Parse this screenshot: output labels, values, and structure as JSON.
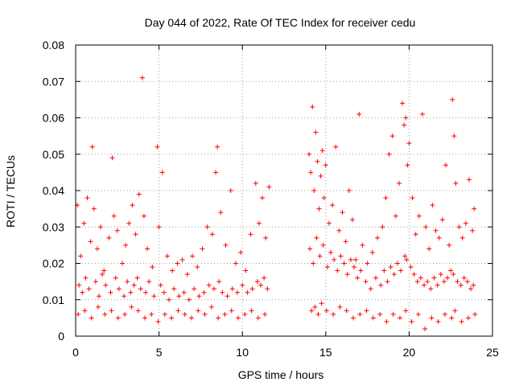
{
  "chart_data": {
    "type": "scatter",
    "title": "Day 044 of 2022, Rate Of TEC Index for receiver cedu",
    "xlabel": "GPS time / hours",
    "ylabel": "ROTI / TECUs",
    "xlim": [
      0,
      25
    ],
    "ylim": [
      0,
      0.08
    ],
    "x_ticks": [
      0,
      5,
      10,
      15,
      20,
      25
    ],
    "x_tick_labels": [
      "0",
      "5",
      "10",
      "15",
      "20",
      "25"
    ],
    "y_ticks": [
      0,
      0.01,
      0.02,
      0.03,
      0.04,
      0.05,
      0.06,
      0.07,
      0.08
    ],
    "y_tick_labels": [
      "0",
      "0.01",
      "0.02",
      "0.03",
      "0.04",
      "0.05",
      "0.06",
      "0.07",
      "0.08"
    ],
    "grid": true,
    "marker": "plus",
    "color": "#ff0000",
    "series": [
      {
        "x": [
          0.1,
          0.3,
          0.5,
          0.7,
          0.9,
          1.0,
          1.1,
          1.3,
          1.5,
          1.7,
          2.0,
          2.2,
          2.3,
          2.5,
          2.8,
          3.0,
          3.2,
          3.4,
          3.6,
          3.8,
          4.0,
          4.1,
          4.3,
          4.6,
          4.9,
          5.0,
          5.2,
          5.5,
          5.8,
          6.1,
          6.4,
          6.7,
          7.0,
          7.3,
          7.6,
          7.9,
          8.2,
          8.4,
          8.5,
          8.7,
          9.0,
          9.3,
          9.6,
          9.9,
          10.2,
          10.5,
          10.8,
          11.0,
          11.2,
          11.4,
          11.6,
          0.2,
          0.4,
          0.6,
          0.8,
          1.2,
          1.4,
          1.6,
          1.8,
          2.1,
          2.4,
          2.6,
          2.9,
          3.1,
          3.3,
          3.5,
          3.7,
          3.9,
          4.2,
          4.4,
          4.7,
          5.1,
          5.3,
          5.6,
          5.9,
          6.2,
          6.5,
          6.8,
          7.1,
          7.4,
          7.7,
          8.0,
          8.3,
          8.6,
          8.8,
          9.1,
          9.4,
          9.7,
          10.0,
          10.3,
          10.6,
          10.9,
          11.1,
          11.3,
          11.5,
          0.15,
          0.55,
          0.95,
          1.35,
          1.75,
          2.15,
          2.55,
          2.95,
          3.35,
          3.75,
          4.15,
          4.55,
          4.95,
          5.35,
          5.75,
          6.15,
          6.55,
          6.95,
          7.35,
          7.75,
          8.15,
          8.55,
          8.95,
          9.35,
          9.75,
          10.15,
          10.55,
          10.95,
          11.35,
          14.0,
          14.1,
          14.2,
          14.3,
          14.4,
          14.5,
          14.6,
          14.7,
          14.8,
          14.9,
          15.0,
          15.2,
          15.4,
          15.6,
          15.8,
          16.0,
          16.2,
          16.4,
          16.6,
          16.8,
          17.0,
          17.2,
          17.5,
          17.8,
          18.1,
          18.4,
          18.6,
          18.8,
          19.0,
          19.2,
          19.4,
          19.6,
          19.7,
          19.8,
          19.9,
          20.0,
          20.2,
          20.4,
          20.6,
          20.8,
          21.0,
          21.2,
          21.4,
          21.6,
          21.8,
          22.0,
          22.2,
          22.4,
          22.6,
          22.7,
          22.8,
          23.0,
          23.2,
          23.4,
          23.6,
          23.8,
          23.9,
          14.05,
          14.25,
          14.45,
          14.65,
          14.85,
          15.1,
          15.3,
          15.5,
          15.7,
          15.9,
          16.1,
          16.3,
          16.5,
          16.7,
          16.9,
          17.1,
          17.4,
          17.7,
          18.0,
          18.3,
          18.5,
          18.7,
          18.9,
          19.1,
          19.3,
          19.5,
          19.75,
          19.85,
          20.1,
          20.3,
          20.5,
          20.7,
          20.9,
          21.1,
          21.3,
          21.5,
          21.7,
          21.9,
          22.1,
          22.3,
          22.5,
          22.65,
          22.9,
          23.1,
          23.3,
          23.5,
          23.7,
          23.85,
          14.15,
          14.35,
          14.55,
          14.75,
          15.05,
          15.45,
          15.85,
          16.25,
          16.65,
          17.05,
          17.45,
          17.85,
          18.25,
          18.65,
          19.05,
          19.45,
          19.8,
          20.15,
          20.55,
          20.95,
          21.35,
          21.75,
          22.15,
          22.55,
          22.75,
          23.15,
          23.55,
          23.95
        ],
        "y": [
          0.036,
          0.022,
          0.031,
          0.038,
          0.026,
          0.052,
          0.035,
          0.024,
          0.03,
          0.018,
          0.027,
          0.049,
          0.033,
          0.029,
          0.02,
          0.025,
          0.031,
          0.036,
          0.028,
          0.039,
          0.071,
          0.033,
          0.024,
          0.019,
          0.052,
          0.03,
          0.045,
          0.022,
          0.018,
          0.02,
          0.021,
          0.017,
          0.022,
          0.019,
          0.024,
          0.03,
          0.028,
          0.045,
          0.052,
          0.034,
          0.025,
          0.04,
          0.02,
          0.023,
          0.018,
          0.028,
          0.042,
          0.031,
          0.038,
          0.027,
          0.041,
          0.014,
          0.012,
          0.016,
          0.013,
          0.015,
          0.011,
          0.017,
          0.014,
          0.012,
          0.016,
          0.013,
          0.011,
          0.015,
          0.012,
          0.014,
          0.016,
          0.013,
          0.012,
          0.015,
          0.011,
          0.014,
          0.012,
          0.01,
          0.013,
          0.011,
          0.012,
          0.01,
          0.013,
          0.011,
          0.012,
          0.014,
          0.013,
          0.015,
          0.012,
          0.011,
          0.013,
          0.012,
          0.014,
          0.012,
          0.013,
          0.015,
          0.014,
          0.016,
          0.013,
          0.006,
          0.007,
          0.005,
          0.008,
          0.006,
          0.007,
          0.005,
          0.006,
          0.008,
          0.007,
          0.005,
          0.006,
          0.004,
          0.006,
          0.005,
          0.007,
          0.006,
          0.005,
          0.007,
          0.006,
          0.008,
          0.005,
          0.006,
          0.007,
          0.005,
          0.006,
          0.007,
          0.005,
          0.006,
          0.05,
          0.045,
          0.063,
          0.04,
          0.056,
          0.048,
          0.035,
          0.044,
          0.051,
          0.038,
          0.047,
          0.031,
          0.036,
          0.052,
          0.029,
          0.034,
          0.026,
          0.04,
          0.032,
          0.021,
          0.061,
          0.025,
          0.02,
          0.023,
          0.027,
          0.03,
          0.038,
          0.05,
          0.055,
          0.033,
          0.042,
          0.064,
          0.058,
          0.06,
          0.047,
          0.053,
          0.038,
          0.028,
          0.033,
          0.061,
          0.03,
          0.024,
          0.036,
          0.029,
          0.027,
          0.032,
          0.047,
          0.025,
          0.065,
          0.055,
          0.042,
          0.03,
          0.027,
          0.031,
          0.043,
          0.029,
          0.035,
          0.024,
          0.02,
          0.027,
          0.022,
          0.025,
          0.019,
          0.023,
          0.021,
          0.018,
          0.022,
          0.02,
          0.017,
          0.021,
          0.019,
          0.016,
          0.018,
          0.015,
          0.013,
          0.016,
          0.014,
          0.018,
          0.015,
          0.019,
          0.017,
          0.02,
          0.018,
          0.022,
          0.021,
          0.019,
          0.017,
          0.015,
          0.016,
          0.014,
          0.015,
          0.013,
          0.016,
          0.014,
          0.017,
          0.015,
          0.016,
          0.018,
          0.017,
          0.015,
          0.014,
          0.016,
          0.015,
          0.013,
          0.014,
          0.007,
          0.008,
          0.006,
          0.009,
          0.007,
          0.006,
          0.008,
          0.007,
          0.005,
          0.006,
          0.007,
          0.005,
          0.006,
          0.004,
          0.006,
          0.005,
          0.007,
          0.004,
          0.006,
          0.002,
          0.005,
          0.004,
          0.006,
          0.005,
          0.007,
          0.004,
          0.005,
          0.006
        ]
      }
    ]
  }
}
